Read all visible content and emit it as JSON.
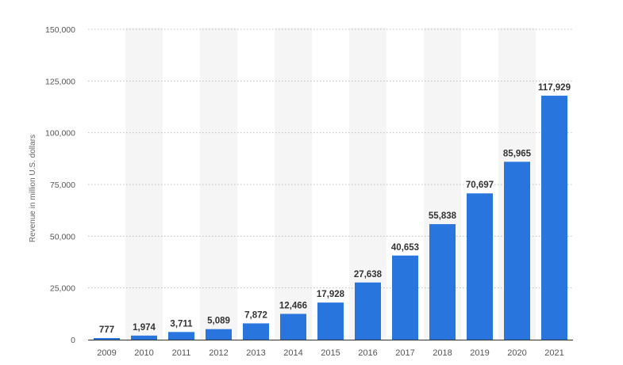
{
  "chart_data": {
    "type": "bar",
    "categories": [
      "2009",
      "2010",
      "2011",
      "2012",
      "2013",
      "2014",
      "2015",
      "2016",
      "2017",
      "2018",
      "2019",
      "2020",
      "2021"
    ],
    "values": [
      777,
      1974,
      3711,
      5089,
      7872,
      12466,
      17928,
      27638,
      40653,
      55838,
      70697,
      85965,
      117929
    ],
    "value_labels": [
      "777",
      "1,974",
      "3,711",
      "5,089",
      "7,872",
      "12,466",
      "17,928",
      "27,638",
      "40,653",
      "55,838",
      "70,697",
      "85,965",
      "117,929"
    ],
    "ylabel": "Revenue in million U.S. dollars",
    "xlabel": "",
    "ylim": [
      0,
      150000
    ],
    "yticks": [
      0,
      25000,
      50000,
      75000,
      100000,
      125000,
      150000
    ],
    "ytick_labels": [
      "0",
      "25,000",
      "50,000",
      "75,000",
      "100,000",
      "125,000",
      "150,000"
    ],
    "grid": true,
    "alternating_column_shading": true,
    "bar_color": "#2876dd",
    "shade_color": "#f5f5f5"
  }
}
